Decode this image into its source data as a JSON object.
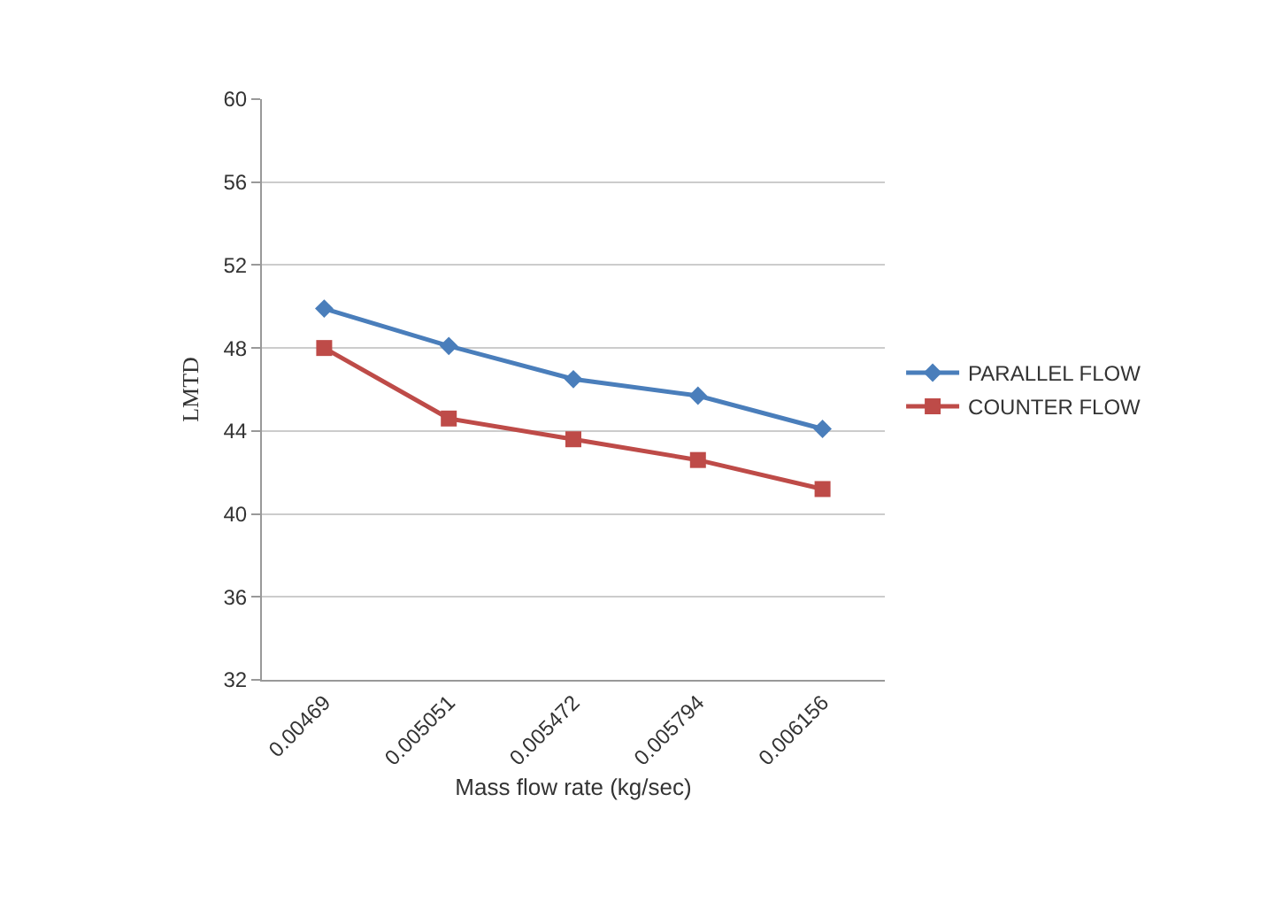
{
  "chart_data": {
    "type": "line",
    "xlabel": "Mass flow rate (kg/sec)",
    "ylabel": "LMTD",
    "categories": [
      "0.00469",
      "0.005051",
      "0.005472",
      "0.005794",
      "0.006156"
    ],
    "series": [
      {
        "name": "PARALLEL FLOW",
        "color": "#4a7ebb",
        "marker": "diamond",
        "values": [
          49.9,
          48.1,
          46.5,
          45.7,
          44.1
        ]
      },
      {
        "name": "COUNTER FLOW",
        "color": "#be4b48",
        "marker": "square",
        "values": [
          48.0,
          44.6,
          43.6,
          42.6,
          41.2
        ]
      }
    ],
    "ylim": [
      32,
      60
    ],
    "yticks": [
      32,
      36,
      40,
      44,
      48,
      52,
      56,
      60
    ],
    "grid": "y",
    "legend": "right",
    "line_style": "solid"
  }
}
